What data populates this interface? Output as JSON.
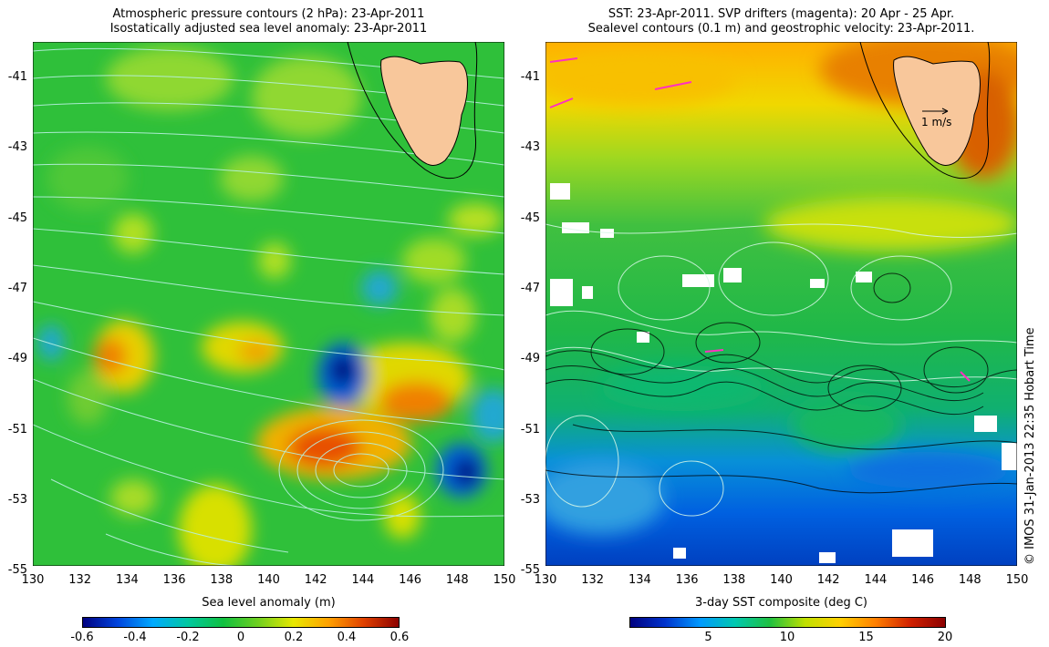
{
  "left_panel": {
    "title_line1": "Atmospheric pressure contours (2 hPa): 23-Apr-2011",
    "title_line2": "Isostatically adjusted sea level anomaly: 23-Apr-2011",
    "colorbar_label": "Sea level anomaly (m)",
    "colorbar_ticks": [
      "-0.6",
      "-0.4",
      "-0.2",
      "0",
      "0.2",
      "0.4",
      "0.6"
    ]
  },
  "right_panel": {
    "title_line1": "SST: 23-Apr-2011. SVP drifters (magenta): 20 Apr - 25 Apr.",
    "title_line2": "Sealevel contours (0.1 m) and geostrophic velocity: 23-Apr-2011.",
    "colorbar_label": "3-day SST composite (deg C)",
    "colorbar_ticks": [
      "5",
      "10",
      "15",
      "20"
    ],
    "velocity_scale_label": "1 m/s"
  },
  "lat_ticks": [
    "-41",
    "-43",
    "-45",
    "-47",
    "-49",
    "-51",
    "-53",
    "-55"
  ],
  "lon_ticks": [
    "130",
    "132",
    "134",
    "136",
    "138",
    "140",
    "142",
    "144",
    "146",
    "148",
    "150"
  ],
  "credit": "© IMOS 31-Jan-2013 22:35 Hobart Time",
  "colors": {
    "land": "#f8c79b",
    "sla_scale": [
      "#00007f",
      "#0044dd",
      "#00aaff",
      "#00c8a0",
      "#10c040",
      "#70d020",
      "#e8e800",
      "#ffa000",
      "#e04000",
      "#8b0000"
    ],
    "sst_scale": [
      "#00007f",
      "#0033cc",
      "#0099ff",
      "#00c8b0",
      "#20c040",
      "#c0e000",
      "#ffd000",
      "#ff8000",
      "#d02000",
      "#8b0000"
    ]
  }
}
